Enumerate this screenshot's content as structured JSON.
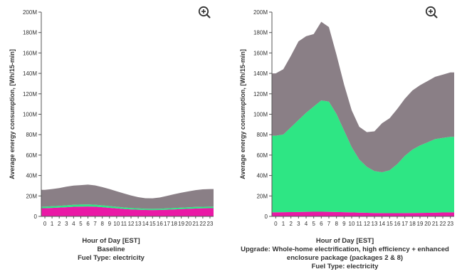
{
  "zoom_icon": "zoom-in-icon",
  "colors": {
    "series_1": "#ea19a6",
    "series_2": "#2ee684",
    "series_3": "#8a7f86"
  },
  "chart_data": [
    {
      "type": "area",
      "stacked": true,
      "xlabel": "Hour of Day [EST]",
      "ylabel": "Average energy consumption, [Wh/15-min]",
      "subtitle_lines": [
        "Baseline",
        "Fuel Type: electricity"
      ],
      "x": [
        0,
        1,
        2,
        3,
        4,
        5,
        6,
        7,
        8,
        9,
        10,
        11,
        12,
        13,
        14,
        15,
        16,
        17,
        18,
        19,
        20,
        21,
        22,
        23
      ],
      "x_tick_labels": [
        "0",
        "1",
        "2",
        "3",
        "4",
        "5",
        "6",
        "7",
        "8",
        "9",
        "10",
        "11",
        "12",
        "13",
        "14",
        "15",
        "16",
        "17",
        "18",
        "19",
        "20",
        "21",
        "22",
        "23"
      ],
      "y_tick_labels": [
        "0",
        "20M",
        "40M",
        "60M",
        "80M",
        "100M",
        "120M",
        "140M",
        "160M",
        "180M",
        "200M"
      ],
      "ylim": [
        0,
        200000000
      ],
      "series": [
        {
          "values": [
            8000000,
            8300000,
            8600000,
            9000000,
            9400000,
            9600000,
            9700000,
            9500000,
            9000000,
            8400000,
            7800000,
            7200000,
            6800000,
            6500000,
            6300000,
            6200000,
            6300000,
            6500000,
            6800000,
            7100000,
            7400000,
            7700000,
            7900000,
            8000000
          ]
        },
        {
          "values": [
            1500000,
            1600000,
            1700000,
            1800000,
            1900000,
            2000000,
            2000000,
            1900000,
            1800000,
            1700000,
            1600000,
            1500000,
            1400000,
            1300000,
            1200000,
            1200000,
            1200000,
            1300000,
            1400000,
            1400000,
            1500000,
            1500000,
            1500000,
            1500000
          ]
        },
        {
          "values": [
            16500000,
            16800000,
            17400000,
            18300000,
            18800000,
            19000000,
            19400000,
            18900000,
            17900000,
            16600000,
            15200000,
            13800000,
            12300000,
            11000000,
            10300000,
            10300000,
            11000000,
            12200000,
            13500000,
            14700000,
            15600000,
            16500000,
            17100000,
            17200000
          ]
        }
      ]
    },
    {
      "type": "area",
      "stacked": true,
      "xlabel": "Hour of Day [EST]",
      "ylabel": "Average energy consumption, [Wh/15-min]",
      "subtitle_lines": [
        "Upgrade: Whole-home electrification, high efficiency + enhanced enclosure package (packages 2 & 8)",
        "Fuel Type: electricity"
      ],
      "x": [
        0,
        1,
        2,
        3,
        4,
        5,
        6,
        7,
        8,
        9,
        10,
        11,
        12,
        13,
        14,
        15,
        16,
        17,
        18,
        19,
        20,
        21,
        22,
        23
      ],
      "x_tick_labels": [
        "0",
        "1",
        "2",
        "3",
        "4",
        "5",
        "6",
        "7",
        "8",
        "9",
        "10",
        "11",
        "12",
        "13",
        "14",
        "15",
        "16",
        "17",
        "18",
        "19",
        "20",
        "21",
        "22",
        "23"
      ],
      "y_tick_labels": [
        "0",
        "20M",
        "40M",
        "60M",
        "80M",
        "100M",
        "120M",
        "140M",
        "160M",
        "180M",
        "200M"
      ],
      "ylim": [
        0,
        200000000
      ],
      "series": [
        {
          "values": [
            4000000,
            4100000,
            4200000,
            4300000,
            4400000,
            4500000,
            4500000,
            4400000,
            4300000,
            4100000,
            3900000,
            3700000,
            3500000,
            3300000,
            3200000,
            3100000,
            3100000,
            3200000,
            3300000,
            3400000,
            3500000,
            3700000,
            3800000,
            3900000
          ]
        },
        {
          "values": [
            75000000,
            76000000,
            83000000,
            90000000,
            97000000,
            103000000,
            109000000,
            108000000,
            96000000,
            80000000,
            64000000,
            52000000,
            45000000,
            41000000,
            40000000,
            42000000,
            48000000,
            56000000,
            62000000,
            66000000,
            69000000,
            72000000,
            73000000,
            74000000
          ]
        },
        {
          "values": [
            61000000,
            64000000,
            70000000,
            77000000,
            75000000,
            71000000,
            77000000,
            73000000,
            58000000,
            45000000,
            36000000,
            32000000,
            34000000,
            39000000,
            48000000,
            51000000,
            54000000,
            56000000,
            58000000,
            59000000,
            60000000,
            61000000,
            62000000,
            63000000
          ]
        }
      ]
    }
  ]
}
